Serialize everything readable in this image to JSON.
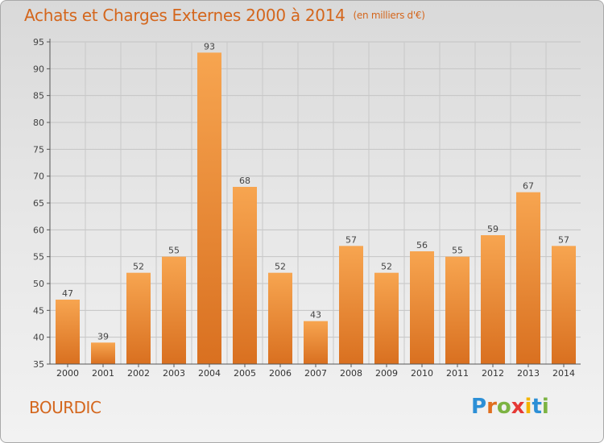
{
  "header": {
    "title": "Achats et Charges Externes 2000 à 2014",
    "unit": "(en milliers d'€)"
  },
  "place": "BOURDIC",
  "logo": {
    "text": "Proxiti"
  },
  "colors": {
    "bar_light": "#f7a550",
    "bar_dark": "#d97020",
    "text_accent": "#d4661c"
  },
  "chart_data": {
    "type": "bar",
    "title": "Achats et Charges Externes 2000 à 2014",
    "subtitle": "(en milliers d'€)",
    "xlabel": "",
    "ylabel": "",
    "categories": [
      "2000",
      "2001",
      "2002",
      "2003",
      "2004",
      "2005",
      "2006",
      "2007",
      "2008",
      "2009",
      "2010",
      "2011",
      "2012",
      "2013",
      "2014"
    ],
    "values": [
      47,
      39,
      52,
      55,
      93,
      68,
      52,
      43,
      57,
      52,
      56,
      55,
      59,
      67,
      57
    ],
    "ylim": [
      35,
      95
    ],
    "yticks": [
      35,
      40,
      45,
      50,
      55,
      60,
      65,
      70,
      75,
      80,
      85,
      90,
      95
    ],
    "grid": true,
    "legend": "none"
  }
}
